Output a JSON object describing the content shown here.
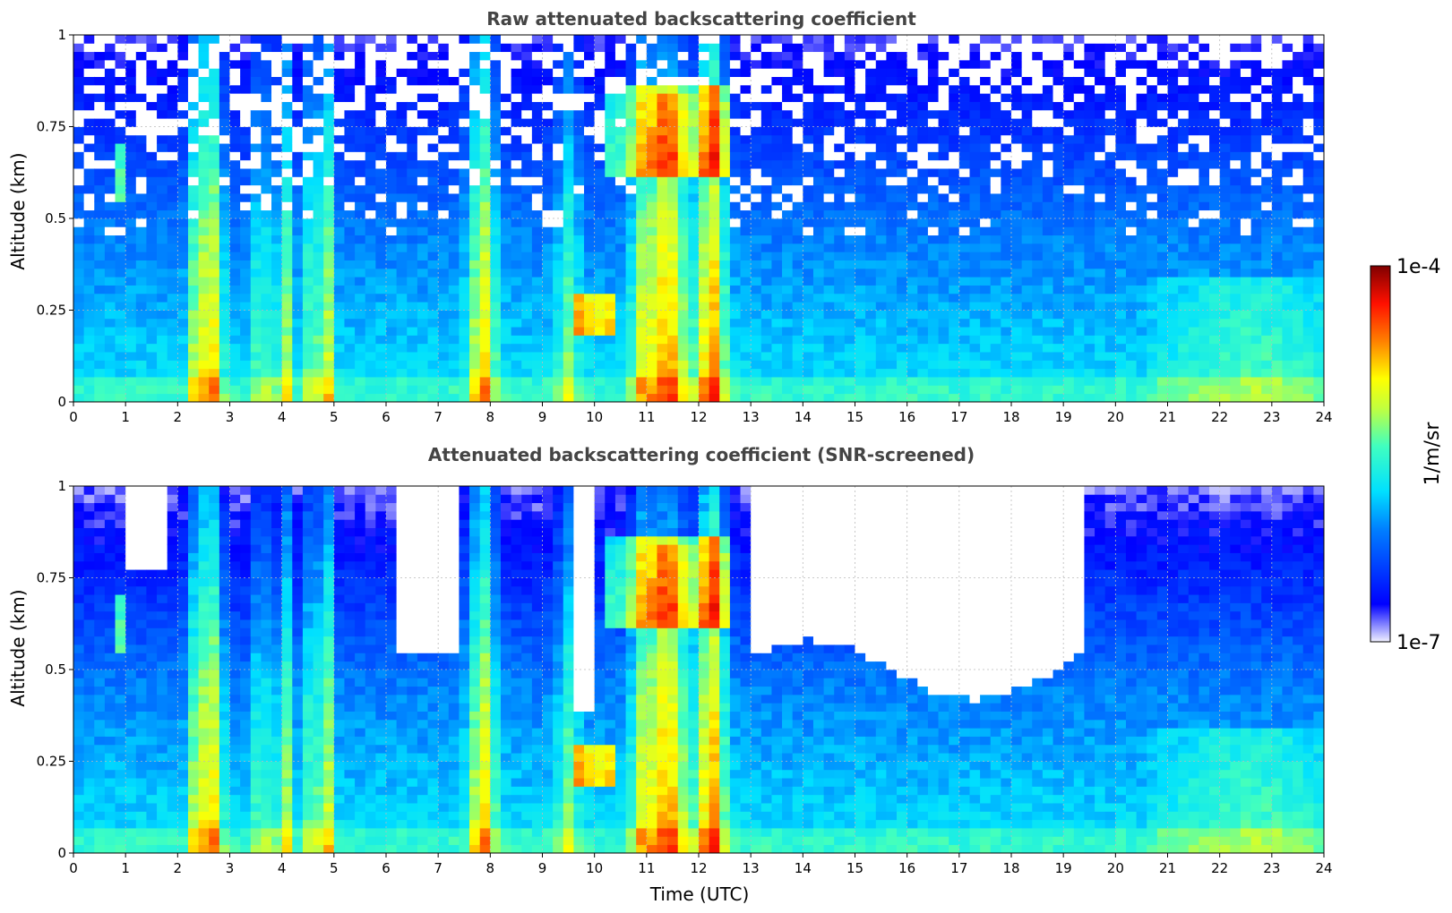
{
  "chart_data": [
    {
      "type": "heatmap",
      "title": "Raw attenuated backscattering coefficient",
      "xlabel": "",
      "ylabel": "Altitude (km)",
      "xlim": [
        0,
        24
      ],
      "ylim": [
        0,
        1
      ],
      "xticks": [
        "0",
        "1",
        "2",
        "3",
        "4",
        "5",
        "6",
        "7",
        "8",
        "9",
        "10",
        "11",
        "12",
        "13",
        "14",
        "15",
        "16",
        "17",
        "18",
        "19",
        "20",
        "21",
        "22",
        "23",
        "24"
      ],
      "yticks": [
        "0",
        "0.25",
        "0.5",
        "0.75",
        "1"
      ],
      "grid": true,
      "screened": false
    },
    {
      "type": "heatmap",
      "title": "Attenuated backscattering coefficient (SNR-screened)",
      "xlabel": "Time (UTC)",
      "ylabel": "Altitude (km)",
      "xlim": [
        0,
        24
      ],
      "ylim": [
        0,
        1
      ],
      "xticks": [
        "0",
        "1",
        "2",
        "3",
        "4",
        "5",
        "6",
        "7",
        "8",
        "9",
        "10",
        "11",
        "12",
        "13",
        "14",
        "15",
        "16",
        "17",
        "18",
        "19",
        "20",
        "21",
        "22",
        "23",
        "24"
      ],
      "yticks": [
        "0",
        "0.25",
        "0.5",
        "0.75",
        "1"
      ],
      "grid": true,
      "screened": true
    }
  ],
  "colorbar": {
    "label": "1/m/sr",
    "max_label": "1e-4",
    "min_label": "1e-7",
    "scale": "log",
    "range": [
      1e-07,
      0.0001
    ],
    "colormap": "jet"
  },
  "colors": {
    "background": "#ffffff",
    "grid": "#bbbbbb",
    "title": "#444444"
  }
}
